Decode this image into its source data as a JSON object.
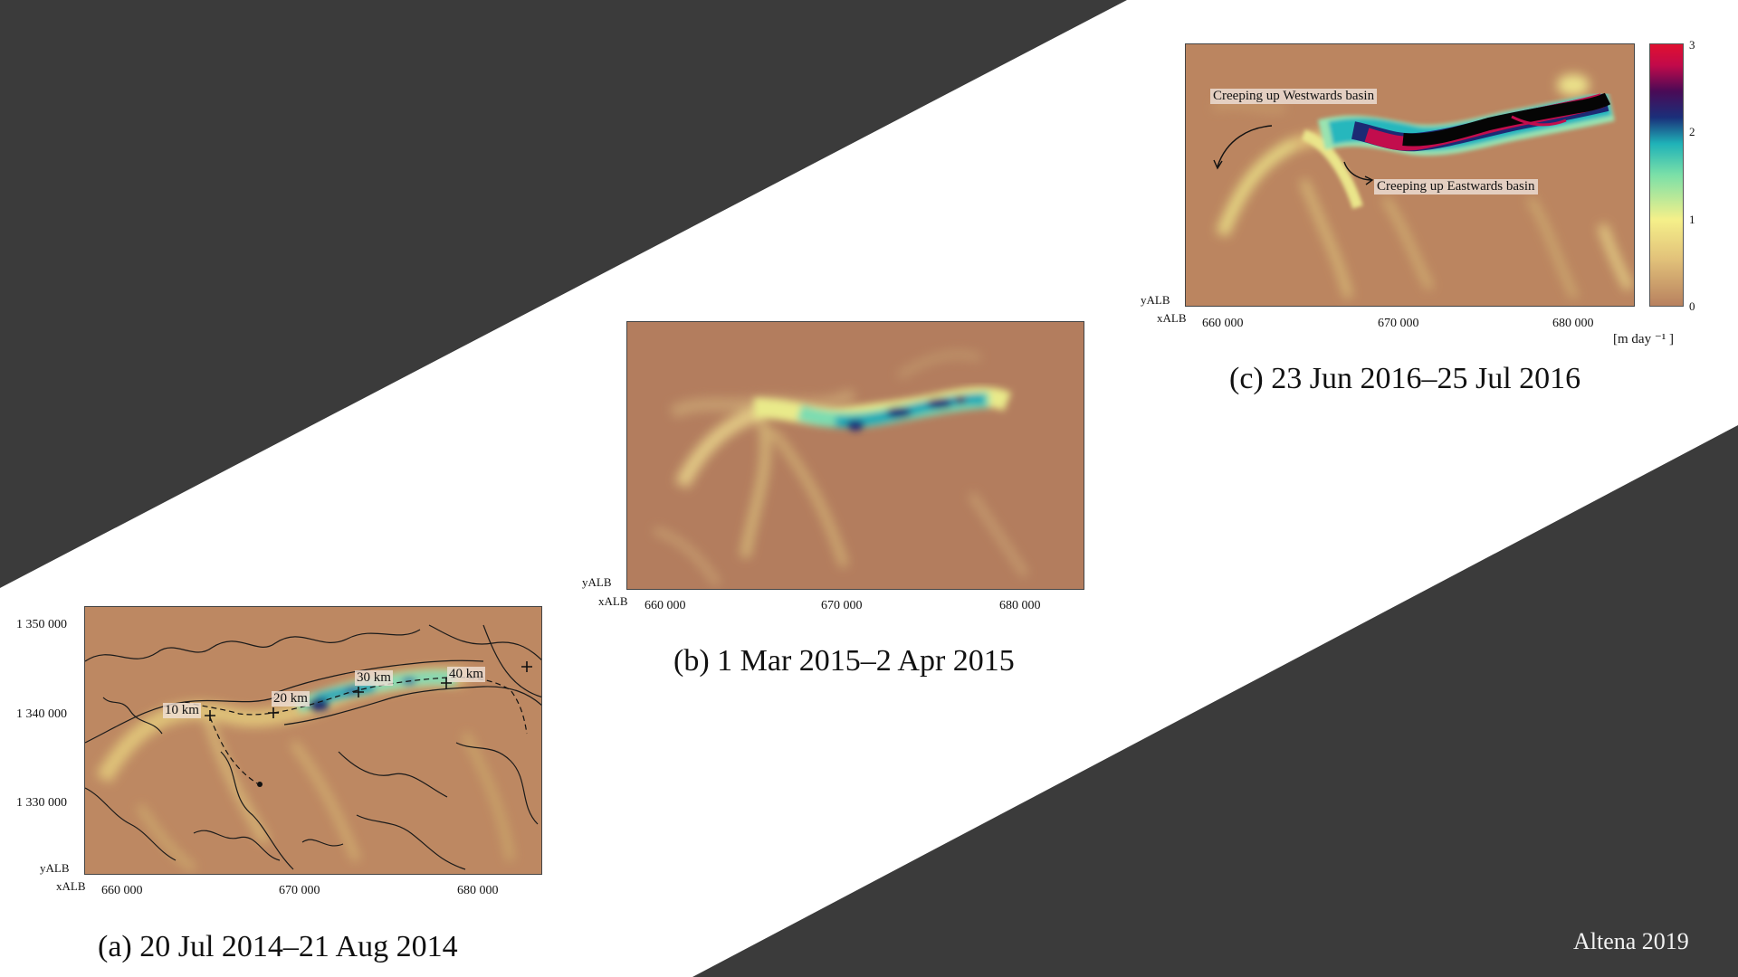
{
  "slide": {
    "credit": "Altena 2019",
    "colors": {
      "dark_band": "#3b3b3b",
      "background": "#ffffff",
      "map_base": "#b8815f"
    }
  },
  "panel_a": {
    "caption": "(a) 20 Jul 2014–21 Aug 2014",
    "x_axis_label": "xALB",
    "y_axis_label": "yALB",
    "x_ticks": [
      "660 000",
      "670 000",
      "680 000"
    ],
    "y_ticks": [
      "1 350 000",
      "1 340 000",
      "1 330 000"
    ],
    "distance_labels": [
      "10 km",
      "20 km",
      "30 km",
      "40 km"
    ]
  },
  "panel_b": {
    "caption": "(b) 1 Mar 2015–2 Apr 2015",
    "x_axis_label": "xALB",
    "y_axis_label": "yALB",
    "x_ticks": [
      "660 000",
      "670 000",
      "680 000"
    ]
  },
  "panel_c": {
    "caption": "(c) 23 Jun 2016–25 Jul 2016",
    "x_axis_label": "xALB",
    "y_axis_label": "yALB",
    "x_ticks": [
      "660 000",
      "670 000",
      "680 000"
    ],
    "annotation_west": "Creeping up Westwards basin",
    "annotation_east": "Creeping up Eastwards basin",
    "colorbar_ticks": [
      "3",
      "2",
      "1",
      "0"
    ],
    "colorbar_unit": "[m day ⁻¹ ]"
  }
}
